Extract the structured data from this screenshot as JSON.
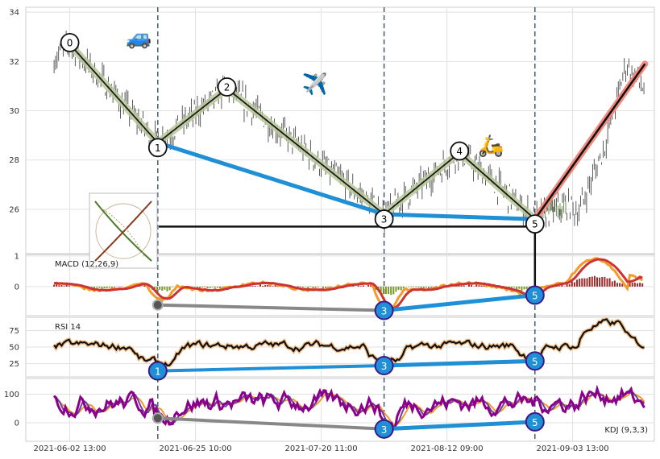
{
  "chart_data": {
    "type": "line",
    "x_tick_labels": [
      "2021-06-02 13:00",
      "2021-06-25 10:00",
      "2021-07-20 11:00",
      "2021-08-12 09:00",
      "2021-09-03 13:00"
    ],
    "panels": [
      {
        "name": "price",
        "y_ticks": [
          "34",
          "32",
          "30",
          "28",
          "26"
        ],
        "ylim": [
          24.2,
          34.2
        ],
        "wave_points": [
          {
            "label": "0",
            "x": 0.07,
            "y": 32.7
          },
          {
            "label": "1",
            "x": 0.21,
            "y": 28.7
          },
          {
            "label": "2",
            "x": 0.32,
            "y": 30.9
          },
          {
            "label": "3",
            "x": 0.57,
            "y": 25.8
          },
          {
            "label": "4",
            "x": 0.69,
            "y": 28.3
          },
          {
            "label": "5",
            "x": 0.81,
            "y": 25.6
          }
        ],
        "projection": {
          "from_x": 0.81,
          "from_y": 25.6,
          "to_x": 0.985,
          "to_y": 31.9
        },
        "divergence_line": {
          "points": [
            [
              0.21,
              28.7
            ],
            [
              0.57,
              25.8
            ],
            [
              0.81,
              25.6
            ]
          ]
        },
        "baseline_level": 25.3,
        "emojis": [
          {
            "char": "🚙",
            "x": 0.18,
            "y": 32.7
          },
          {
            "char": "✈️",
            "x": 0.46,
            "y": 30.8
          },
          {
            "char": "🛵",
            "x": 0.74,
            "y": 28.3
          }
        ]
      },
      {
        "name": "macd",
        "label": "MACD (12,26,9)",
        "y_ticks": [
          "1",
          "0"
        ],
        "ylim": [
          -0.95,
          1.05
        ],
        "markers": [
          {
            "label": "",
            "x": 0.21,
            "y": -0.6
          },
          {
            "label": "3",
            "x": 0.57,
            "y": -0.78
          },
          {
            "label": "5",
            "x": 0.81,
            "y": -0.28
          }
        ]
      },
      {
        "name": "rsi",
        "label": "RSI 14",
        "y_ticks": [
          "75",
          "50",
          "25"
        ],
        "ylim": [
          5,
          95
        ],
        "markers": [
          {
            "label": "1",
            "x": 0.21,
            "y": 14
          },
          {
            "label": "3",
            "x": 0.57,
            "y": 22
          },
          {
            "label": "5",
            "x": 0.81,
            "y": 29
          }
        ]
      },
      {
        "name": "kdj",
        "label": "KDJ (9,3,3)",
        "y_ticks": [
          "100",
          "0"
        ],
        "ylim": [
          -65,
          155
        ],
        "markers": [
          {
            "label": "",
            "x": 0.21,
            "y": 16
          },
          {
            "label": "3",
            "x": 0.57,
            "y": -22
          },
          {
            "label": "5",
            "x": 0.81,
            "y": 3
          }
        ]
      }
    ],
    "colors": {
      "zigzag": "#1a1a1a",
      "zigzag_halo": "#b9c89a",
      "divergence": "#1f8fd6",
      "projection": "#111111",
      "projection_halo": "#f08a80",
      "macd_line": "#f39a2a",
      "signal_line": "#cc3333",
      "hist_pos": "#9b2b2b",
      "hist_neg": "#7a9a2a",
      "rsi_line": "#111111",
      "rsi_halo": "#f5c08a",
      "kdj_k": "#6a3ea0",
      "kdj_d": "#f39a2a",
      "kdj_j": "#8b008b",
      "dashed_vline": "#3b5068",
      "marker_fill": "#1f8fd6",
      "marker_ring": "#3a1a8a"
    }
  }
}
